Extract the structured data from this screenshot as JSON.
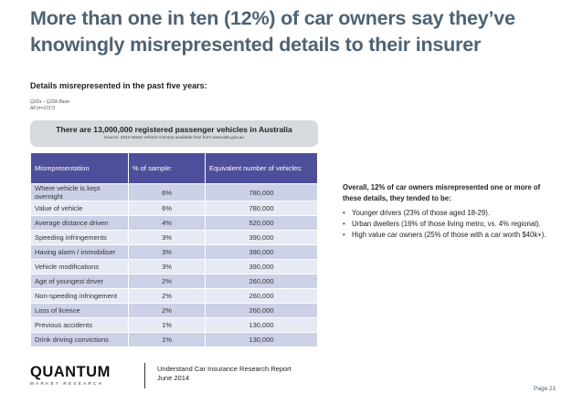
{
  "title": "More than one in ten (12%) of car owners say they’ve knowingly misrepresented details to their insurer",
  "subhead": "Details misrepresented in the past five years:",
  "question_ref": [
    "Q22a – Q22b Base:",
    "All (n=1017)"
  ],
  "banner": {
    "headline": "There are 13,000,000 registered passenger vehicles in Australia",
    "source": "Source: 2013 Motor Vehicle Census available free from www.abs.gov.au"
  },
  "table": {
    "headers": [
      "Misrepresentation",
      "% of sample:",
      "Equivalent number of vehicles:"
    ],
    "rows": [
      [
        "Where vehicle is kept overnight",
        "6%",
        "780,000"
      ],
      [
        "Value of vehicle",
        "6%",
        "780,000"
      ],
      [
        "Average distance driven",
        "4%",
        "520,000"
      ],
      [
        "Speeding infringements",
        "3%",
        "390,000"
      ],
      [
        "Having alarm / immobiliser",
        "3%",
        "390,000"
      ],
      [
        "Vehicle modifications",
        "3%",
        "390,000"
      ],
      [
        "Age of youngest driver",
        "2%",
        "260,000"
      ],
      [
        "Non-speeding infringement",
        "2%",
        "260,000"
      ],
      [
        "Loss of licence",
        "2%",
        "260,000"
      ],
      [
        "Previous accidents",
        "1%",
        "130,000"
      ],
      [
        "Drink driving convictions",
        "1%",
        "130,000"
      ]
    ]
  },
  "summary": {
    "lead": "Overall, 12% of car owners misrepresented one or more of these details, they tended to be:",
    "bullets": [
      "Younger drivers (23% of those aged 18-29).",
      "Urban dwellers (16% of those living metro, vs. 4% regional).",
      "High value car owners (25% of those with a car worth $40k+)."
    ]
  },
  "footer": {
    "logo_main": "QUANTUM",
    "logo_sub": "MARKET RESEARCH",
    "report_line1": "Understand Car Insurance Research Report",
    "report_line2": "June 2014",
    "page": "Page 21"
  }
}
